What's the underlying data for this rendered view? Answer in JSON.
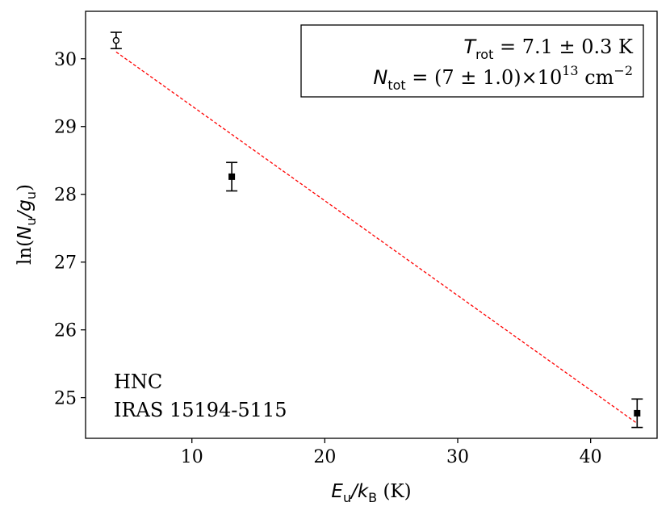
{
  "chart_data": {
    "type": "scatter",
    "xlim": [
      2,
      45
    ],
    "ylim": [
      24.4,
      30.7
    ],
    "xticks": [
      10,
      20,
      30,
      40
    ],
    "yticks": [
      25,
      26,
      27,
      28,
      29,
      30
    ],
    "grid": false,
    "xlabel": {
      "main": "E",
      "sub": "u",
      "sep": "/",
      "main2": "k",
      "sub2": "B",
      "unit": " (K)"
    },
    "ylabel": {
      "prefix": "ln(",
      "main": "N",
      "sub": "u",
      "sep": "/",
      "main2": "g",
      "sub2": "u",
      "suffix": ")"
    },
    "points": [
      {
        "x": 4.3,
        "y": 30.27,
        "err": 0.12,
        "marker": "open-circle"
      },
      {
        "x": 13.0,
        "y": 28.26,
        "err": 0.21,
        "marker": "filled-square"
      },
      {
        "x": 43.5,
        "y": 24.77,
        "err": 0.21,
        "marker": "filled-square"
      }
    ],
    "fit": {
      "x": [
        4.3,
        43.5
      ],
      "y": [
        30.1,
        24.62
      ],
      "color": "#ff0000",
      "style": "dashed"
    },
    "result_box": {
      "placement": "top-right",
      "line1": {
        "main": "T",
        "sub": "rot",
        "value": " = 7.1 ± 0.3 K"
      },
      "line2": {
        "main": "N",
        "sub": "tot",
        "value": " = (7 ± 1.0)×10",
        "exp": "13",
        "unit": " cm",
        "unit_exp": "−2"
      }
    },
    "annotation": {
      "placement": "bottom-left",
      "line1": "HNC",
      "line2": "IRAS 15194-5115"
    }
  }
}
